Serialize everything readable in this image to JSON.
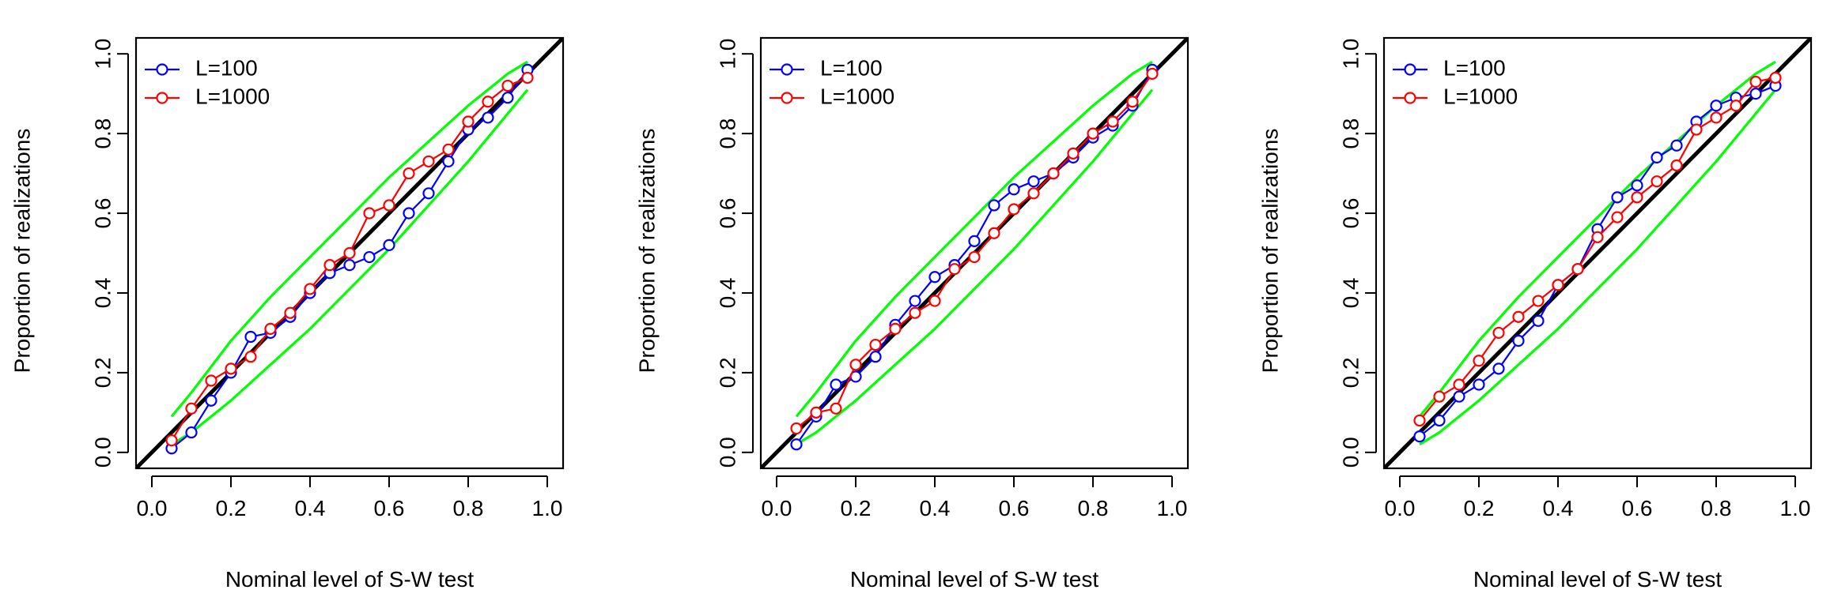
{
  "chart_data": [
    {
      "type": "line",
      "xlabel": "Nominal level of S-W test",
      "ylabel": "Proportion of realizations",
      "xlim": [
        0,
        1
      ],
      "ylim": [
        0,
        1
      ],
      "ticks": [
        "0.0",
        "0.2",
        "0.4",
        "0.6",
        "0.8",
        "1.0"
      ],
      "tick_values": [
        0,
        0.2,
        0.4,
        0.6,
        0.8,
        1.0
      ],
      "legend_position": "top-left",
      "x": [
        0.05,
        0.1,
        0.15,
        0.2,
        0.25,
        0.3,
        0.35,
        0.4,
        0.45,
        0.5,
        0.55,
        0.6,
        0.65,
        0.7,
        0.75,
        0.8,
        0.85,
        0.9,
        0.95
      ],
      "series": [
        {
          "name": "L=100",
          "color": "#0000FF",
          "values": [
            0.01,
            0.05,
            0.13,
            0.2,
            0.29,
            0.3,
            0.34,
            0.4,
            0.45,
            0.47,
            0.49,
            0.52,
            0.6,
            0.65,
            0.73,
            0.81,
            0.84,
            0.89,
            0.96
          ]
        },
        {
          "name": "L=1000",
          "color": "#FF0000",
          "values": [
            0.03,
            0.11,
            0.18,
            0.21,
            0.24,
            0.31,
            0.35,
            0.41,
            0.47,
            0.5,
            0.6,
            0.62,
            0.7,
            0.73,
            0.76,
            0.83,
            0.88,
            0.92,
            0.94
          ]
        }
      ],
      "reference_line": {
        "color": "#000000"
      },
      "bands": {
        "color": "#00FF00",
        "x": [
          0.05,
          0.1,
          0.2,
          0.3,
          0.4,
          0.5,
          0.6,
          0.7,
          0.8,
          0.9,
          0.95
        ],
        "upper": [
          0.09,
          0.15,
          0.28,
          0.39,
          0.49,
          0.59,
          0.69,
          0.78,
          0.87,
          0.95,
          0.98
        ],
        "lower": [
          0.02,
          0.05,
          0.13,
          0.22,
          0.31,
          0.41,
          0.51,
          0.62,
          0.73,
          0.85,
          0.91
        ]
      }
    },
    {
      "type": "line",
      "xlabel": "Nominal level of S-W test",
      "ylabel": "Proportion of realizations",
      "xlim": [
        0,
        1
      ],
      "ylim": [
        0,
        1
      ],
      "ticks": [
        "0.0",
        "0.2",
        "0.4",
        "0.6",
        "0.8",
        "1.0"
      ],
      "tick_values": [
        0,
        0.2,
        0.4,
        0.6,
        0.8,
        1.0
      ],
      "legend_position": "top-left",
      "x": [
        0.05,
        0.1,
        0.15,
        0.2,
        0.25,
        0.3,
        0.35,
        0.4,
        0.45,
        0.5,
        0.55,
        0.6,
        0.65,
        0.7,
        0.75,
        0.8,
        0.85,
        0.9,
        0.95
      ],
      "series": [
        {
          "name": "L=100",
          "color": "#0000FF",
          "values": [
            0.02,
            0.09,
            0.17,
            0.19,
            0.24,
            0.32,
            0.38,
            0.44,
            0.47,
            0.53,
            0.62,
            0.66,
            0.68,
            0.7,
            0.74,
            0.79,
            0.82,
            0.87,
            0.96
          ]
        },
        {
          "name": "L=1000",
          "color": "#FF0000",
          "values": [
            0.06,
            0.1,
            0.11,
            0.22,
            0.27,
            0.31,
            0.35,
            0.38,
            0.46,
            0.49,
            0.55,
            0.61,
            0.65,
            0.7,
            0.75,
            0.8,
            0.83,
            0.88,
            0.95
          ]
        }
      ],
      "reference_line": {
        "color": "#000000"
      },
      "bands": {
        "color": "#00FF00",
        "x": [
          0.05,
          0.1,
          0.2,
          0.3,
          0.4,
          0.5,
          0.6,
          0.7,
          0.8,
          0.9,
          0.95
        ],
        "upper": [
          0.09,
          0.15,
          0.28,
          0.39,
          0.49,
          0.59,
          0.69,
          0.78,
          0.87,
          0.95,
          0.98
        ],
        "lower": [
          0.02,
          0.05,
          0.13,
          0.22,
          0.31,
          0.41,
          0.51,
          0.62,
          0.73,
          0.85,
          0.91
        ]
      }
    },
    {
      "type": "line",
      "xlabel": "Nominal level of S-W test",
      "ylabel": "Proportion of realizations",
      "xlim": [
        0,
        1
      ],
      "ylim": [
        0,
        1
      ],
      "ticks": [
        "0.0",
        "0.2",
        "0.4",
        "0.6",
        "0.8",
        "1.0"
      ],
      "tick_values": [
        0,
        0.2,
        0.4,
        0.6,
        0.8,
        1.0
      ],
      "legend_position": "top-left",
      "x": [
        0.05,
        0.1,
        0.15,
        0.2,
        0.25,
        0.3,
        0.35,
        0.4,
        0.45,
        0.5,
        0.55,
        0.6,
        0.65,
        0.7,
        0.75,
        0.8,
        0.85,
        0.9,
        0.95
      ],
      "series": [
        {
          "name": "L=100",
          "color": "#0000FF",
          "values": [
            0.04,
            0.08,
            0.14,
            0.17,
            0.21,
            0.28,
            0.33,
            0.42,
            0.46,
            0.56,
            0.64,
            0.67,
            0.74,
            0.77,
            0.83,
            0.87,
            0.89,
            0.9,
            0.92
          ]
        },
        {
          "name": "L=1000",
          "color": "#FF0000",
          "values": [
            0.08,
            0.14,
            0.17,
            0.23,
            0.3,
            0.34,
            0.38,
            0.42,
            0.46,
            0.54,
            0.59,
            0.64,
            0.68,
            0.72,
            0.81,
            0.84,
            0.87,
            0.93,
            0.94
          ]
        }
      ],
      "reference_line": {
        "color": "#000000"
      },
      "bands": {
        "color": "#00FF00",
        "x": [
          0.05,
          0.1,
          0.2,
          0.3,
          0.4,
          0.5,
          0.6,
          0.7,
          0.8,
          0.9,
          0.95
        ],
        "upper": [
          0.09,
          0.15,
          0.28,
          0.39,
          0.49,
          0.59,
          0.69,
          0.78,
          0.87,
          0.95,
          0.98
        ],
        "lower": [
          0.02,
          0.05,
          0.13,
          0.22,
          0.31,
          0.41,
          0.51,
          0.62,
          0.73,
          0.85,
          0.91
        ]
      }
    }
  ]
}
